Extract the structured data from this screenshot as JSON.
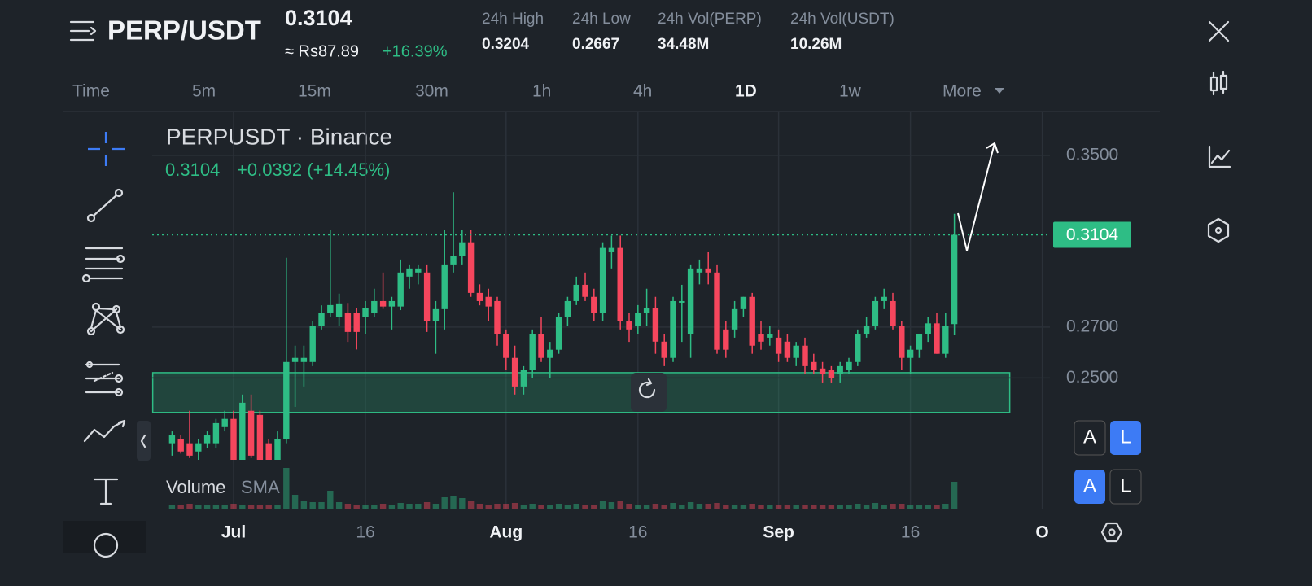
{
  "header": {
    "pair": "PERP/USDT",
    "price": "0.3104",
    "fiat": "≈ Rs87.89",
    "change": "+16.39%",
    "stats": [
      {
        "label": "24h High",
        "value": "0.3204"
      },
      {
        "label": "24h Low",
        "value": "0.2667"
      },
      {
        "label": "24h Vol(PERP)",
        "value": "34.48M"
      },
      {
        "label": "24h Vol(USDT)",
        "value": "10.26M"
      }
    ]
  },
  "timeframes": [
    "Time",
    "5m",
    "15m",
    "30m",
    "1h",
    "4h",
    "1D",
    "1w",
    "More"
  ],
  "active_timeframe": 6,
  "scale_buttons": [
    "A",
    "L",
    "A",
    "L"
  ],
  "chart_data": {
    "type": "candlestick",
    "symbol": "PERPUSDT · Binance",
    "change_label": "+0.0392 (+14.45%)",
    "log_scale": true,
    "grid": true,
    "up_color": "#2ebd85",
    "down_color": "#f6465d",
    "x": [
      -7,
      -6,
      -5,
      -4,
      -3,
      -2,
      -1,
      0,
      1,
      2,
      3,
      4,
      5,
      6,
      7,
      8,
      9,
      10,
      11,
      12,
      13,
      14,
      15,
      16,
      17,
      18,
      19,
      20,
      21,
      22,
      23,
      24,
      25,
      26,
      27,
      28,
      29,
      30,
      31,
      32,
      33,
      34,
      35,
      36,
      37,
      38,
      39,
      40,
      41,
      42,
      43,
      44,
      45,
      46,
      47,
      48,
      49,
      50,
      51,
      52,
      53,
      54,
      55,
      56,
      57,
      58,
      59,
      60,
      61,
      62,
      63,
      64,
      65,
      66,
      67,
      68,
      69,
      70,
      71,
      72,
      73,
      74,
      75,
      76,
      77,
      78,
      79,
      80,
      81,
      82
    ],
    "ohlc": [
      [
        0.2265,
        0.2306,
        0.2223,
        0.2292
      ],
      [
        0.2278,
        0.2292,
        0.223,
        0.2237
      ],
      [
        0.2265,
        0.2379,
        0.2215,
        0.2223
      ],
      [
        0.2237,
        0.2278,
        0.2209,
        0.2265
      ],
      [
        0.2265,
        0.2306,
        0.225,
        0.2292
      ],
      [
        0.2265,
        0.235,
        0.225,
        0.2335
      ],
      [
        0.2321,
        0.2379,
        0.2306,
        0.235
      ],
      [
        0.235,
        0.2379,
        0.22,
        0.2209
      ],
      [
        0.2209,
        0.2438,
        0.22,
        0.2408
      ],
      [
        0.2379,
        0.2438,
        0.2215,
        0.2223
      ],
      [
        0.2364,
        0.2379,
        0.22,
        0.2209
      ],
      [
        0.2265,
        0.2278,
        0.22,
        0.2209
      ],
      [
        0.2209,
        0.2306,
        0.22,
        0.2278
      ],
      [
        0.2278,
        0.2998,
        0.2265,
        0.2561
      ],
      [
        0.2561,
        0.2625,
        0.2393,
        0.2577
      ],
      [
        0.2561,
        0.2625,
        0.2468,
        0.2577
      ],
      [
        0.2561,
        0.2723,
        0.2545,
        0.2706
      ],
      [
        0.2706,
        0.279,
        0.269,
        0.2757
      ],
      [
        0.2757,
        0.3128,
        0.274,
        0.2791
      ],
      [
        0.274,
        0.284,
        0.2706,
        0.2798
      ],
      [
        0.2757,
        0.28,
        0.264,
        0.268
      ],
      [
        0.2757,
        0.278,
        0.261,
        0.268
      ],
      [
        0.274,
        0.2808,
        0.2673,
        0.278
      ],
      [
        0.2757,
        0.2861,
        0.274,
        0.2808
      ],
      [
        0.2808,
        0.2932,
        0.2775,
        0.2785
      ],
      [
        0.2785,
        0.2826,
        0.269,
        0.2808
      ],
      [
        0.2785,
        0.299,
        0.277,
        0.2932
      ],
      [
        0.2914,
        0.2968,
        0.2861,
        0.295
      ],
      [
        0.2932,
        0.2968,
        0.288,
        0.295
      ],
      [
        0.2932,
        0.2968,
        0.268,
        0.2723
      ],
      [
        0.2723,
        0.2808,
        0.2593,
        0.2774
      ],
      [
        0.2774,
        0.3128,
        0.269,
        0.2968
      ],
      [
        0.2968,
        0.331,
        0.2932,
        0.3005
      ],
      [
        0.3005,
        0.3128,
        0.2968,
        0.3069
      ],
      [
        0.3069,
        0.3128,
        0.2826,
        0.2843
      ],
      [
        0.2843,
        0.288,
        0.279,
        0.2808
      ],
      [
        0.2826,
        0.2861,
        0.2723,
        0.2785
      ],
      [
        0.2808,
        0.2826,
        0.2625,
        0.2673
      ],
      [
        0.2673,
        0.269,
        0.253,
        0.2577
      ],
      [
        0.2577,
        0.2625,
        0.2438,
        0.2468
      ],
      [
        0.2468,
        0.2545,
        0.2438,
        0.253
      ],
      [
        0.253,
        0.269,
        0.2499,
        0.2673
      ],
      [
        0.2673,
        0.274,
        0.2561,
        0.2577
      ],
      [
        0.2577,
        0.264,
        0.2499,
        0.2609
      ],
      [
        0.2609,
        0.2757,
        0.2593,
        0.274
      ],
      [
        0.274,
        0.2826,
        0.2706,
        0.2808
      ],
      [
        0.2808,
        0.2914,
        0.2791,
        0.2878
      ],
      [
        0.2878,
        0.2932,
        0.2808,
        0.2826
      ],
      [
        0.2826,
        0.2861,
        0.2723,
        0.2757
      ],
      [
        0.2757,
        0.3069,
        0.2723,
        0.3043
      ],
      [
        0.3023,
        0.31,
        0.295,
        0.3043
      ],
      [
        0.3043,
        0.31,
        0.269,
        0.2723
      ],
      [
        0.2723,
        0.2757,
        0.264,
        0.269
      ],
      [
        0.2706,
        0.2791,
        0.2673,
        0.2757
      ],
      [
        0.2757,
        0.2861,
        0.2706,
        0.278
      ],
      [
        0.278,
        0.2826,
        0.2593,
        0.2641
      ],
      [
        0.2641,
        0.2673,
        0.2545,
        0.2577
      ],
      [
        0.2577,
        0.2826,
        0.2561,
        0.2808
      ],
      [
        0.2801,
        0.2878,
        0.264,
        0.2808
      ],
      [
        0.2673,
        0.2968,
        0.2577,
        0.295
      ],
      [
        0.2932,
        0.299,
        0.288,
        0.295
      ],
      [
        0.295,
        0.3023,
        0.288,
        0.2932
      ],
      [
        0.2932,
        0.2968,
        0.2593,
        0.2609
      ],
      [
        0.269,
        0.2723,
        0.2577,
        0.2609
      ],
      [
        0.269,
        0.2808,
        0.2657,
        0.2774
      ],
      [
        0.2774,
        0.2826,
        0.274,
        0.2826
      ],
      [
        0.2826,
        0.2843,
        0.2593,
        0.2625
      ],
      [
        0.2673,
        0.2723,
        0.2609,
        0.2641
      ],
      [
        0.2657,
        0.2706,
        0.2625,
        0.2673
      ],
      [
        0.2657,
        0.269,
        0.2561,
        0.2593
      ],
      [
        0.2641,
        0.2673,
        0.2561,
        0.2577
      ],
      [
        0.2577,
        0.264,
        0.2545,
        0.2625
      ],
      [
        0.2625,
        0.2657,
        0.2514,
        0.2545
      ],
      [
        0.2561,
        0.2593,
        0.2514,
        0.253
      ],
      [
        0.2536,
        0.2561,
        0.2483,
        0.2514
      ],
      [
        0.253,
        0.2545,
        0.2483,
        0.2499
      ],
      [
        0.2514,
        0.2561,
        0.2483,
        0.2545
      ],
      [
        0.253,
        0.2577,
        0.2514,
        0.2561
      ],
      [
        0.2561,
        0.269,
        0.2545,
        0.2673
      ],
      [
        0.2673,
        0.274,
        0.2657,
        0.2706
      ],
      [
        0.2706,
        0.2826,
        0.269,
        0.2808
      ],
      [
        0.2808,
        0.2861,
        0.2774,
        0.2826
      ],
      [
        0.2808,
        0.2843,
        0.269,
        0.2706
      ],
      [
        0.2706,
        0.2723,
        0.253,
        0.2577
      ],
      [
        0.2577,
        0.2625,
        0.2514,
        0.2609
      ],
      [
        0.2609,
        0.2673,
        0.2577,
        0.2673
      ],
      [
        0.2673,
        0.274,
        0.264,
        0.2715
      ],
      [
        0.2715,
        0.2757,
        0.2593,
        0.2593
      ],
      [
        0.2593,
        0.2757,
        0.2577,
        0.2706
      ],
      [
        0.2712,
        0.3204,
        0.2667,
        0.3104
      ]
    ],
    "volume": [
      4,
      5,
      6,
      4,
      5,
      4,
      5,
      6,
      5,
      4,
      5,
      4,
      4,
      50,
      17,
      10,
      8,
      8,
      22,
      8,
      6,
      5,
      5,
      5,
      6,
      5,
      7,
      6,
      6,
      8,
      6,
      14,
      15,
      13,
      9,
      6,
      5,
      6,
      6,
      7,
      5,
      6,
      5,
      5,
      6,
      5,
      6,
      5,
      5,
      9,
      8,
      10,
      6,
      5,
      5,
      6,
      5,
      7,
      5,
      8,
      6,
      6,
      7,
      5,
      5,
      5,
      6,
      5,
      4,
      5,
      4,
      4,
      5,
      4,
      4,
      4,
      4,
      4,
      6,
      5,
      7,
      5,
      6,
      6,
      4,
      5,
      5,
      5,
      6,
      33
    ],
    "volume_label": "Volume",
    "volume_sma": "SMA",
    "xlim": [
      -9.26,
      92.87
    ],
    "xticks": [
      {
        "value": 0,
        "label": "Jul"
      },
      {
        "value": 15,
        "label": "16"
      },
      {
        "value": 31,
        "label": "Aug"
      },
      {
        "value": 46,
        "label": "16"
      },
      {
        "value": 62,
        "label": "Sep"
      },
      {
        "value": 77,
        "label": "16"
      },
      {
        "value": 92,
        "label": "O"
      }
    ],
    "ylim": [
      0.2209,
      0.3726
    ],
    "yticks": [
      {
        "value": 0.35,
        "label": "0.3500"
      },
      {
        "value": 0.27,
        "label": "0.2700"
      },
      {
        "value": 0.25,
        "label": "0.2500"
      }
    ],
    "vlim": [
      0,
      50
    ],
    "zone": {
      "x": [
        -9.2,
        88.3
      ],
      "y": [
        0.2373,
        0.252
      ]
    }
  }
}
